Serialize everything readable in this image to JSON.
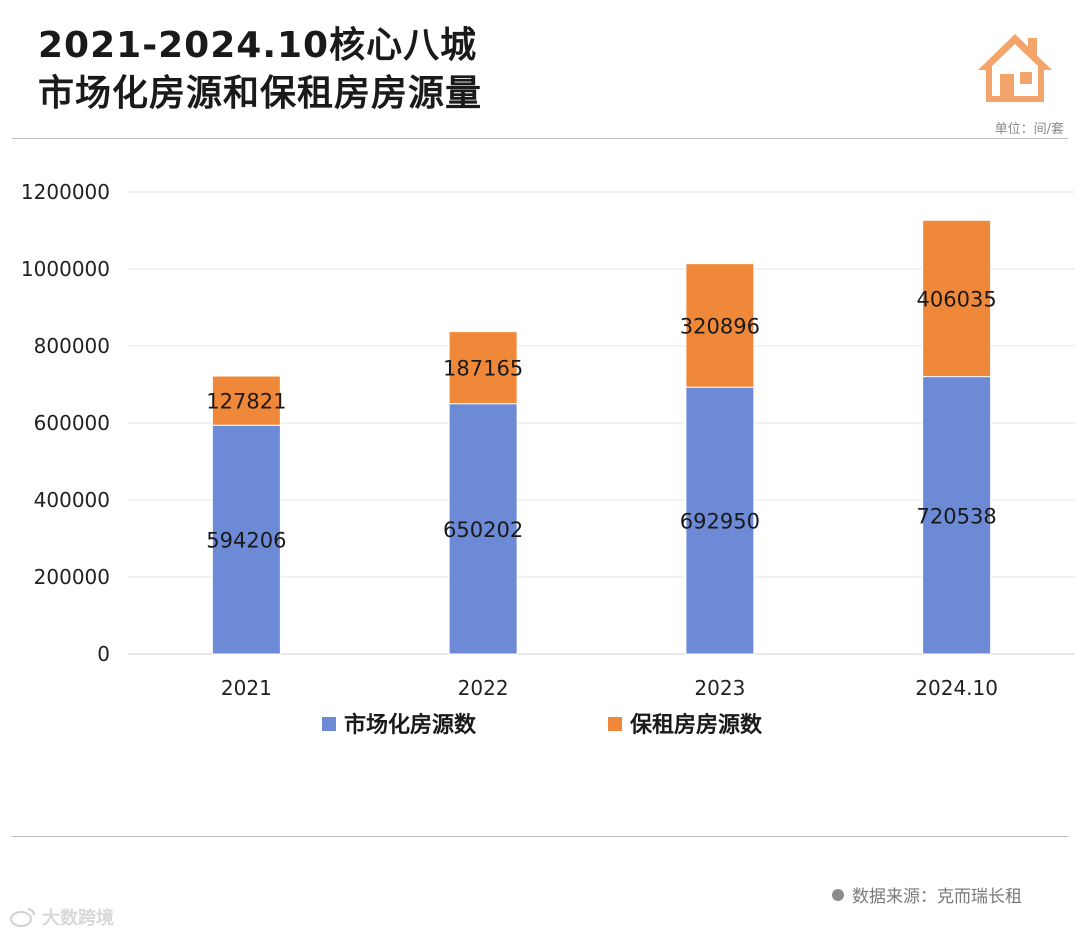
{
  "header": {
    "title_line1": "2021-2024.10核心八城",
    "title_line2": "市场化房源和保租房房源量",
    "unit": "单位：间/套"
  },
  "footer": {
    "source": "数据来源：克而瑞长租",
    "watermark": "大数跨境"
  },
  "colors": {
    "market": "#6c8ad5",
    "rental": "#f0883a",
    "house_icon": "#f3a46a"
  },
  "chart_data": {
    "type": "bar",
    "stacked": true,
    "categories": [
      "2021",
      "2022",
      "2023",
      "2024.10"
    ],
    "series": [
      {
        "name": "市场化房源数",
        "color": "#6c8ad5",
        "values": [
          594206,
          650202,
          692950,
          720538
        ]
      },
      {
        "name": "保租房房源数",
        "color": "#f0883a",
        "values": [
          127821,
          187165,
          320896,
          406035
        ]
      }
    ],
    "ylim": [
      0,
      1200000
    ],
    "yticks": [
      0,
      200000,
      400000,
      600000,
      800000,
      1000000,
      1200000
    ],
    "ytick_labels": [
      "0",
      "200000",
      "400000",
      "600000",
      "800000",
      "1000000",
      "1200000"
    ],
    "grid": true,
    "legend": "bottom-center"
  }
}
